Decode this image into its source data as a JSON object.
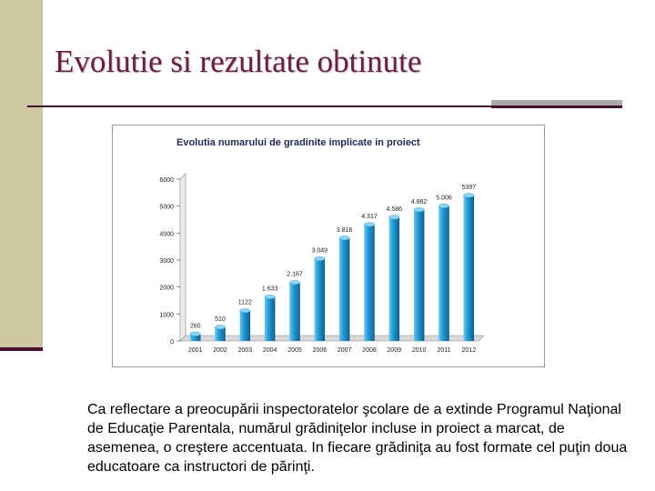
{
  "slide": {
    "title": "Evolutie si rezultate obtinute",
    "body": "Ca reflectare a preocupării inspectoratelor şcolare de a extinde Programul Naţional de Educaţie Parentala, numărul grădiniţelor incluse in proiect a marcat, de asemenea, o creştere accentuata. In fiecare grădiniţa au fost formate cel puţin doua educatoare ca instructori de părinţi."
  },
  "chart_data": {
    "type": "bar",
    "title": "Evolutia numarului de gradinite implicate in proiect",
    "categories": [
      "2001",
      "2002",
      "2003",
      "2004",
      "2005",
      "2006",
      "2007",
      "2008",
      "2009",
      "2010",
      "2011",
      "2012"
    ],
    "values": [
      260,
      510,
      1122,
      1633,
      2167,
      3049,
      3816,
      4317,
      4586,
      4862,
      5006,
      5397
    ],
    "value_labels": [
      "260",
      "510",
      "1122",
      "1.633",
      "2.167",
      "3.049",
      "3.816",
      "4.317",
      "4.586",
      "4.862",
      "5.006",
      "5397"
    ],
    "yticks": [
      "0",
      "1000",
      "2000",
      "3000",
      "4000",
      "5000",
      "6000"
    ],
    "ylim": [
      0,
      6000
    ],
    "grid": false,
    "legend": "none",
    "bar_color": "#1f9fd8"
  }
}
